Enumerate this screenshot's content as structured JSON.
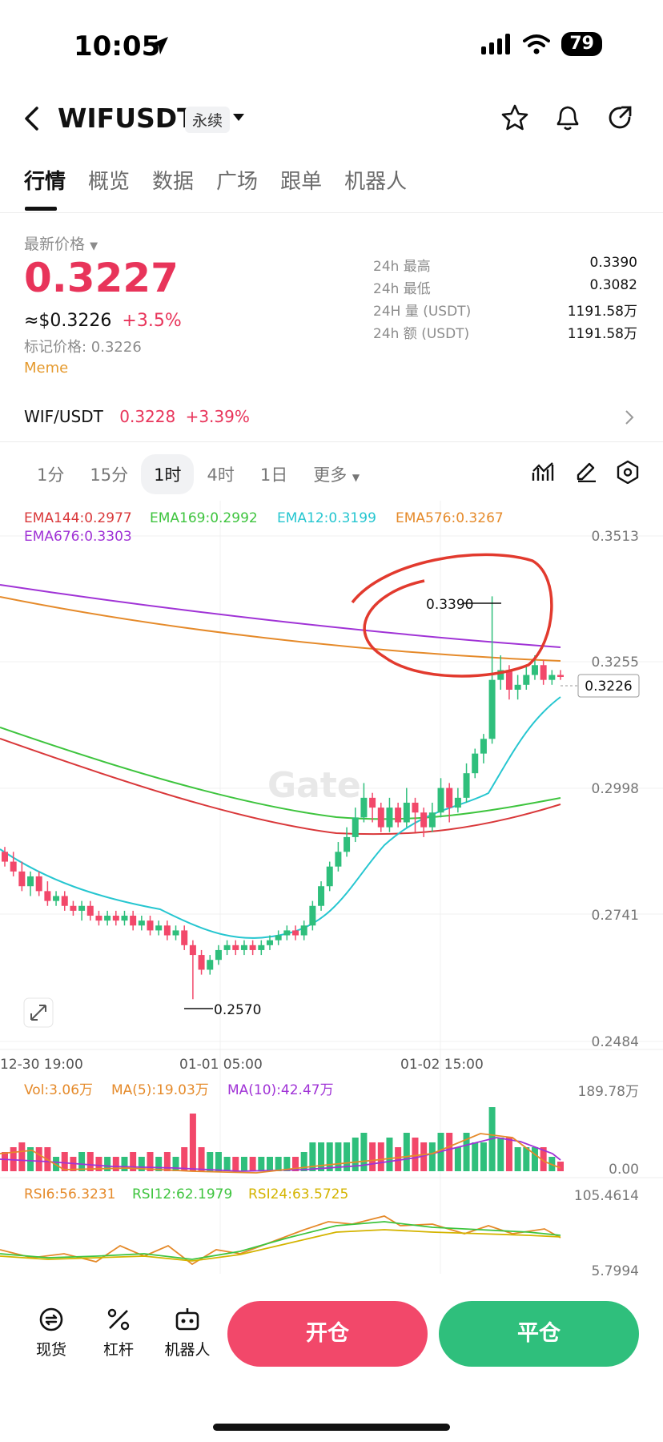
{
  "status_bar": {
    "time": "10:05",
    "battery": "79"
  },
  "header": {
    "symbol": "WIFUSDT",
    "contract_tag": "永续"
  },
  "tabs": [
    "行情",
    "概览",
    "数据",
    "广场",
    "跟单",
    "机器人"
  ],
  "price_panel": {
    "latest_label": "最新价格",
    "price": "0.3227",
    "usd_value": "≈$0.3226",
    "change": "+3.5%",
    "mark_price": "标记价格: 0.3226",
    "category": "Meme",
    "stats": [
      {
        "label": "24h  最高",
        "value": "0.3390"
      },
      {
        "label": "24h  最低",
        "value": "0.3082"
      },
      {
        "label": "24H  量 (USDT)",
        "value": "1191.58万"
      },
      {
        "label": "24h  额 (USDT)",
        "value": "1191.58万"
      }
    ]
  },
  "pair_line": {
    "pair": "WIF/USDT",
    "price": "0.3228",
    "change": "+3.39%"
  },
  "intervals": [
    "1分",
    "15分",
    "1时",
    "4时",
    "1日",
    "更多"
  ],
  "active_interval": "1时",
  "ema_legend": [
    {
      "text": "EMA144:0.2977",
      "color": "#d9383a"
    },
    {
      "text": "EMA169:0.2992",
      "color": "#3ec43e"
    },
    {
      "text": "EMA12:0.3199",
      "color": "#26c6d0"
    },
    {
      "text": "EMA576:0.3267",
      "color": "#e58a2a"
    },
    {
      "text": "EMA676:0.3303",
      "color": "#a033d6"
    }
  ],
  "price_axis": [
    "0.3513",
    "0.3255",
    "0.2998",
    "0.2741",
    "0.2484"
  ],
  "current_price_tag": "0.3226",
  "high_marker": "0.3390",
  "low_marker": "0.2570",
  "watermark": "Gate",
  "time_axis": [
    "12-30 19:00",
    "01-01 05:00",
    "01-02 15:00"
  ],
  "volume_legend": [
    {
      "text": "Vol:3.06万",
      "color": "#e58a2a"
    },
    {
      "text": "MA(5):19.03万",
      "color": "#e58a2a"
    },
    {
      "text": "MA(10):42.47万",
      "color": "#a033d6"
    }
  ],
  "volume_axis": [
    "189.78万",
    "0.00"
  ],
  "rsi_legend": [
    {
      "text": "RSI6:56.3231",
      "color": "#e58a2a"
    },
    {
      "text": "RSI12:62.1979",
      "color": "#3ec43e"
    },
    {
      "text": "RSI24:63.5725",
      "color": "#d4b400"
    }
  ],
  "rsi_axis": [
    "105.4614",
    "5.7994"
  ],
  "bottom_nav": [
    "现货",
    "杠杆",
    "机器人"
  ],
  "open_button": "开仓",
  "close_button": "平仓",
  "colors": {
    "up": "#2fbf7c",
    "down": "#f2486a",
    "accent_red": "#e8345a"
  },
  "chart_data": {
    "type": "candlestick",
    "title": "",
    "candles": [
      [
        0.287,
        0.285,
        0.288,
        0.284
      ],
      [
        0.285,
        0.283,
        0.287,
        0.282
      ],
      [
        0.283,
        0.28,
        0.285,
        0.279
      ],
      [
        0.28,
        0.282,
        0.283,
        0.278
      ],
      [
        0.282,
        0.279,
        0.283,
        0.278
      ],
      [
        0.279,
        0.277,
        0.281,
        0.276
      ],
      [
        0.277,
        0.278,
        0.279,
        0.276
      ],
      [
        0.278,
        0.276,
        0.279,
        0.275
      ],
      [
        0.276,
        0.275,
        0.277,
        0.274
      ],
      [
        0.275,
        0.276,
        0.277,
        0.273
      ],
      [
        0.276,
        0.274,
        0.277,
        0.273
      ],
      [
        0.274,
        0.273,
        0.275,
        0.272
      ],
      [
        0.273,
        0.274,
        0.275,
        0.272
      ],
      [
        0.274,
        0.273,
        0.275,
        0.272
      ],
      [
        0.273,
        0.274,
        0.275,
        0.272
      ],
      [
        0.274,
        0.272,
        0.275,
        0.271
      ],
      [
        0.272,
        0.273,
        0.274,
        0.271
      ],
      [
        0.273,
        0.271,
        0.274,
        0.27
      ],
      [
        0.271,
        0.272,
        0.273,
        0.27
      ],
      [
        0.272,
        0.27,
        0.273,
        0.269
      ],
      [
        0.27,
        0.271,
        0.272,
        0.269
      ],
      [
        0.271,
        0.268,
        0.272,
        0.267
      ],
      [
        0.268,
        0.266,
        0.269,
        0.257
      ],
      [
        0.266,
        0.263,
        0.267,
        0.262
      ],
      [
        0.263,
        0.265,
        0.266,
        0.262
      ],
      [
        0.265,
        0.267,
        0.268,
        0.264
      ],
      [
        0.267,
        0.268,
        0.269,
        0.266
      ],
      [
        0.268,
        0.267,
        0.269,
        0.266
      ],
      [
        0.267,
        0.268,
        0.269,
        0.266
      ],
      [
        0.268,
        0.267,
        0.269,
        0.266
      ],
      [
        0.267,
        0.268,
        0.269,
        0.266
      ],
      [
        0.268,
        0.269,
        0.27,
        0.267
      ],
      [
        0.269,
        0.27,
        0.271,
        0.268
      ],
      [
        0.27,
        0.271,
        0.272,
        0.269
      ],
      [
        0.271,
        0.27,
        0.272,
        0.269
      ],
      [
        0.27,
        0.272,
        0.273,
        0.269
      ],
      [
        0.272,
        0.276,
        0.277,
        0.271
      ],
      [
        0.276,
        0.28,
        0.281,
        0.275
      ],
      [
        0.28,
        0.284,
        0.285,
        0.279
      ],
      [
        0.284,
        0.287,
        0.289,
        0.283
      ],
      [
        0.287,
        0.29,
        0.292,
        0.286
      ],
      [
        0.29,
        0.294,
        0.296,
        0.289
      ],
      [
        0.294,
        0.298,
        0.301,
        0.293
      ],
      [
        0.298,
        0.296,
        0.299,
        0.293
      ],
      [
        0.296,
        0.292,
        0.297,
        0.291
      ],
      [
        0.292,
        0.296,
        0.298,
        0.291
      ],
      [
        0.296,
        0.293,
        0.297,
        0.292
      ],
      [
        0.293,
        0.297,
        0.3,
        0.292
      ],
      [
        0.297,
        0.295,
        0.298,
        0.291
      ],
      [
        0.295,
        0.292,
        0.296,
        0.29
      ],
      [
        0.292,
        0.295,
        0.297,
        0.291
      ],
      [
        0.295,
        0.3,
        0.302,
        0.294
      ],
      [
        0.3,
        0.296,
        0.301,
        0.293
      ],
      [
        0.296,
        0.298,
        0.3,
        0.295
      ],
      [
        0.298,
        0.303,
        0.305,
        0.297
      ],
      [
        0.303,
        0.307,
        0.308,
        0.302
      ],
      [
        0.307,
        0.31,
        0.311,
        0.305
      ],
      [
        0.31,
        0.322,
        0.339,
        0.309
      ],
      [
        0.322,
        0.324,
        0.327,
        0.32
      ],
      [
        0.324,
        0.32,
        0.325,
        0.318
      ],
      [
        0.32,
        0.321,
        0.323,
        0.318
      ],
      [
        0.321,
        0.323,
        0.325,
        0.32
      ],
      [
        0.323,
        0.325,
        0.327,
        0.322
      ],
      [
        0.325,
        0.322,
        0.326,
        0.321
      ],
      [
        0.322,
        0.323,
        0.324,
        0.321
      ],
      [
        0.323,
        0.3226,
        0.324,
        0.322
      ]
    ],
    "ylim": [
      0.2484,
      0.3513
    ],
    "high": 0.339,
    "low": 0.257
  }
}
